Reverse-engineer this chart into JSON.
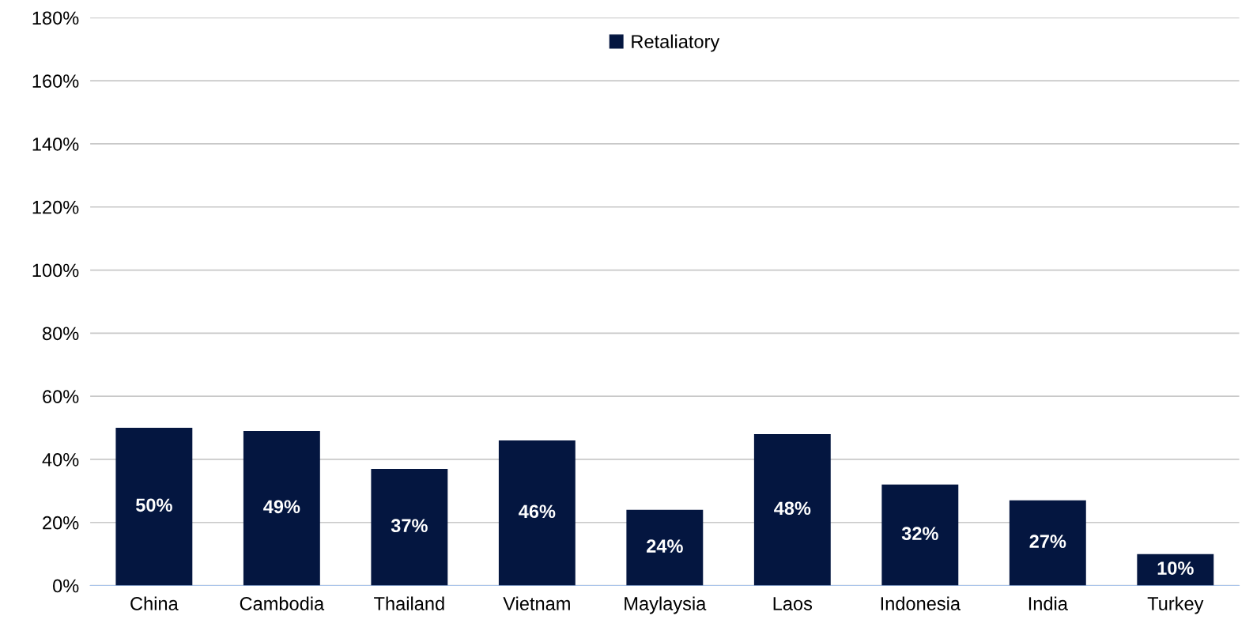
{
  "chart_data": {
    "type": "bar",
    "categories": [
      "China",
      "Cambodia",
      "Thailand",
      "Vietnam",
      "Maylaysia",
      "Laos",
      "Indonesia",
      "India",
      "Turkey"
    ],
    "series": [
      {
        "name": "Retaliatory",
        "color": "#041640",
        "values": [
          50,
          49,
          37,
          46,
          24,
          48,
          32,
          27,
          10
        ],
        "value_labels": [
          "50%",
          "49%",
          "37%",
          "46%",
          "24%",
          "48%",
          "32%",
          "27%",
          "10%"
        ]
      }
    ],
    "ylim": [
      0,
      180
    ],
    "yticks": [
      {
        "value": 0,
        "label": "0%"
      },
      {
        "value": 20,
        "label": "20%"
      },
      {
        "value": 40,
        "label": "40%"
      },
      {
        "value": 60,
        "label": "60%"
      },
      {
        "value": 80,
        "label": "80%"
      },
      {
        "value": 100,
        "label": "100%"
      },
      {
        "value": 120,
        "label": "120%"
      },
      {
        "value": 140,
        "label": "140%"
      },
      {
        "value": 160,
        "label": "160%"
      },
      {
        "value": 180,
        "label": "180%"
      }
    ],
    "grid": "y",
    "legend": "top"
  }
}
